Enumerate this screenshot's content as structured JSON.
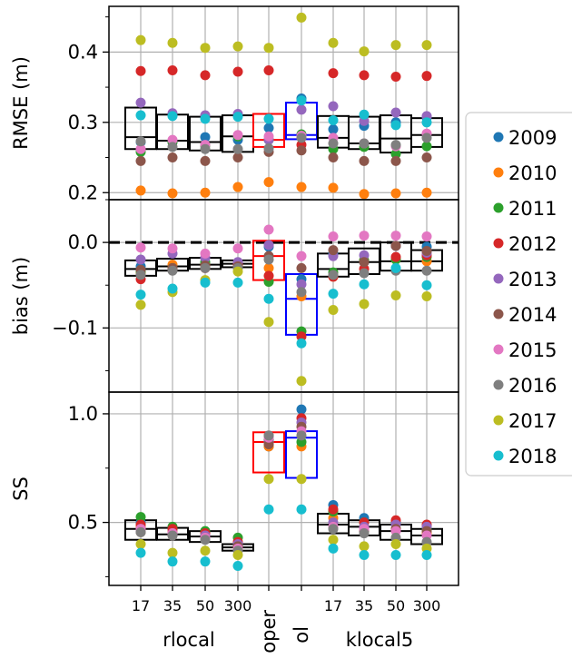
{
  "chart_data": {
    "type": "scatter",
    "layout": "three vertically stacked panels sharing x axis, with box summaries per group",
    "x_groups": [
      "rlocal",
      "oper",
      "ol",
      "klocal5"
    ],
    "x_tick_labels": [
      "17",
      "35",
      "50",
      "300",
      "",
      "",
      "17",
      "35",
      "50",
      "300"
    ],
    "x_group_labels": [
      {
        "text": "rlocal",
        "rotated": false
      },
      {
        "text": "oper",
        "rotated": true
      },
      {
        "text": "ol",
        "rotated": true
      },
      {
        "text": "klocal5",
        "rotated": false
      }
    ],
    "legend": {
      "placement": "right",
      "entries": [
        {
          "label": "2009",
          "color": "#1f77b4"
        },
        {
          "label": "2010",
          "color": "#ff7f0e"
        },
        {
          "label": "2011",
          "color": "#2ca02c"
        },
        {
          "label": "2012",
          "color": "#d62728"
        },
        {
          "label": "2013",
          "color": "#9467bd"
        },
        {
          "label": "2014",
          "color": "#8c564b"
        },
        {
          "label": "2015",
          "color": "#e377c2"
        },
        {
          "label": "2016",
          "color": "#7f7f7f"
        },
        {
          "label": "2017",
          "color": "#bcbd22"
        },
        {
          "label": "2018",
          "color": "#17becf"
        }
      ]
    },
    "box_colors": [
      "#000000",
      "#000000",
      "#000000",
      "#000000",
      "#ff0000",
      "#0000ff",
      "#000000",
      "#000000",
      "#000000",
      "#000000"
    ],
    "panels": [
      {
        "ylabel": "RMSE (m)",
        "ylim": [
          0.19,
          0.465
        ],
        "yticks": [
          0.2,
          0.3,
          0.4
        ],
        "ytick_labels": [
          "0.2",
          "0.3",
          "0.4"
        ],
        "grid": true,
        "zero_line": false,
        "values": [
          [
            0.272,
            0.203,
            0.258,
            0.373,
            0.328,
            0.245,
            0.262,
            0.273,
            0.417,
            0.31
          ],
          [
            0.272,
            0.199,
            0.272,
            0.374,
            0.313,
            0.25,
            0.275,
            0.265,
            0.413,
            0.309
          ],
          [
            0.279,
            0.2,
            0.267,
            0.367,
            0.31,
            0.245,
            0.268,
            0.262,
            0.406,
            0.305
          ],
          [
            0.275,
            0.208,
            0.28,
            0.372,
            0.312,
            0.25,
            0.282,
            0.262,
            0.408,
            0.308
          ],
          [
            0.292,
            0.215,
            0.275,
            0.374,
            0.275,
            0.258,
            0.28,
            0.263,
            0.406,
            0.305
          ],
          [
            0.334,
            0.208,
            0.283,
            0.268,
            0.318,
            0.26,
            0.281,
            0.278,
            0.449,
            0.331
          ],
          [
            0.29,
            0.207,
            0.262,
            0.37,
            0.323,
            0.25,
            0.278,
            0.27,
            0.413,
            0.303
          ],
          [
            0.295,
            0.198,
            0.265,
            0.367,
            0.302,
            0.245,
            0.27,
            0.27,
            0.401,
            0.311
          ],
          [
            0.3,
            0.199,
            0.255,
            0.365,
            0.314,
            0.245,
            0.266,
            0.268,
            0.41,
            0.296
          ],
          [
            0.307,
            0.2,
            0.266,
            0.366,
            0.309,
            0.25,
            0.284,
            0.278,
            0.41,
            0.3
          ]
        ],
        "boxes": [
          [
            0.262,
            0.279,
            0.321
          ],
          [
            0.262,
            0.274,
            0.311
          ],
          [
            0.26,
            0.272,
            0.308
          ],
          [
            0.258,
            0.28,
            0.31
          ],
          [
            0.265,
            0.275,
            0.312
          ],
          [
            0.276,
            0.282,
            0.328
          ],
          [
            0.264,
            0.278,
            0.309
          ],
          [
            0.262,
            0.27,
            0.308
          ],
          [
            0.257,
            0.277,
            0.31
          ],
          [
            0.265,
            0.282,
            0.306
          ]
        ]
      },
      {
        "ylabel": "bias (m)",
        "ylim": [
          -0.175,
          0.05
        ],
        "yticks": [
          -0.1,
          0.0
        ],
        "ytick_labels": [
          "−0.1",
          "0.0"
        ],
        "grid": true,
        "zero_line": true,
        "values": [
          [
            -0.028,
            -0.036,
            -0.034,
            -0.043,
            -0.02,
            -0.032,
            -0.006,
            -0.038,
            -0.073,
            -0.061
          ],
          [
            -0.03,
            -0.026,
            -0.03,
            -0.031,
            -0.013,
            -0.03,
            -0.007,
            -0.033,
            -0.058,
            -0.054
          ],
          [
            -0.024,
            -0.026,
            -0.023,
            -0.03,
            -0.018,
            -0.027,
            -0.013,
            -0.03,
            -0.044,
            -0.047
          ],
          [
            -0.024,
            -0.026,
            -0.024,
            -0.025,
            -0.023,
            -0.028,
            -0.007,
            -0.03,
            -0.034,
            -0.047
          ],
          [
            -0.005,
            -0.03,
            -0.046,
            -0.039,
            -0.003,
            -0.016,
            0.015,
            -0.02,
            -0.093,
            -0.066
          ],
          [
            -0.043,
            -0.063,
            -0.104,
            -0.11,
            -0.049,
            -0.03,
            -0.016,
            -0.058,
            -0.162,
            -0.118
          ],
          [
            -0.013,
            -0.04,
            -0.035,
            -0.04,
            -0.016,
            -0.009,
            0.007,
            -0.038,
            -0.079,
            -0.06
          ],
          [
            -0.023,
            -0.021,
            -0.021,
            -0.031,
            -0.015,
            -0.023,
            0.008,
            -0.036,
            -0.072,
            -0.049
          ],
          [
            -0.004,
            -0.02,
            -0.02,
            -0.017,
            -0.004,
            -0.004,
            0.008,
            -0.033,
            -0.062,
            -0.03
          ],
          [
            -0.005,
            -0.022,
            -0.017,
            -0.015,
            -0.012,
            -0.01,
            0.007,
            -0.033,
            -0.063,
            -0.05
          ]
        ],
        "boxes": [
          [
            -0.039,
            -0.031,
            -0.021
          ],
          [
            -0.033,
            -0.028,
            -0.019
          ],
          [
            -0.031,
            -0.026,
            -0.018
          ],
          [
            -0.029,
            -0.025,
            -0.021
          ],
          [
            -0.044,
            -0.016,
            0.002
          ],
          [
            -0.108,
            -0.066,
            -0.037
          ],
          [
            -0.04,
            -0.031,
            -0.013
          ],
          [
            -0.037,
            -0.023,
            -0.007
          ],
          [
            -0.033,
            -0.022,
            0.0
          ],
          [
            -0.033,
            -0.022,
            -0.009
          ]
        ]
      },
      {
        "ylabel": "SS",
        "ylim": [
          0.21,
          1.1
        ],
        "yticks": [
          0.5,
          1.0
        ],
        "ytick_labels": [
          "0.5",
          "1.0"
        ],
        "grid": true,
        "zero_line": false,
        "values": [
          [
            0.5,
            0.48,
            0.525,
            0.49,
            0.47,
            0.455,
            0.47,
            0.455,
            0.4,
            0.36
          ],
          [
            0.47,
            0.455,
            0.48,
            0.47,
            0.45,
            0.44,
            0.45,
            0.44,
            0.36,
            0.32
          ],
          [
            0.455,
            0.44,
            0.46,
            0.45,
            0.44,
            0.43,
            0.43,
            0.42,
            0.37,
            0.32
          ],
          [
            0.4,
            0.39,
            0.43,
            0.41,
            0.4,
            0.39,
            0.38,
            0.37,
            0.35,
            0.3
          ],
          [
            0.85,
            0.85,
            0.88,
            0.9,
            0.87,
            0.86,
            0.89,
            0.9,
            0.7,
            0.56
          ],
          [
            1.02,
            0.85,
            0.87,
            0.98,
            0.96,
            0.94,
            0.92,
            0.9,
            0.7,
            0.56
          ],
          [
            0.58,
            0.52,
            0.55,
            0.56,
            0.5,
            0.48,
            0.48,
            0.47,
            0.42,
            0.38
          ],
          [
            0.52,
            0.48,
            0.5,
            0.5,
            0.48,
            0.46,
            0.47,
            0.45,
            0.39,
            0.35
          ],
          [
            0.5,
            0.47,
            0.49,
            0.51,
            0.49,
            0.47,
            0.46,
            0.43,
            0.4,
            0.35
          ],
          [
            0.48,
            0.45,
            0.47,
            0.49,
            0.48,
            0.46,
            0.44,
            0.41,
            0.38,
            0.35
          ]
        ],
        "boxes": [
          [
            0.42,
            0.47,
            0.51
          ],
          [
            0.42,
            0.445,
            0.475
          ],
          [
            0.41,
            0.435,
            0.46
          ],
          [
            0.37,
            0.385,
            0.4
          ],
          [
            0.73,
            0.87,
            0.915
          ],
          [
            0.705,
            0.89,
            0.92
          ],
          [
            0.45,
            0.49,
            0.54
          ],
          [
            0.44,
            0.48,
            0.51
          ],
          [
            0.42,
            0.46,
            0.49
          ],
          [
            0.4,
            0.44,
            0.47
          ]
        ]
      }
    ]
  }
}
